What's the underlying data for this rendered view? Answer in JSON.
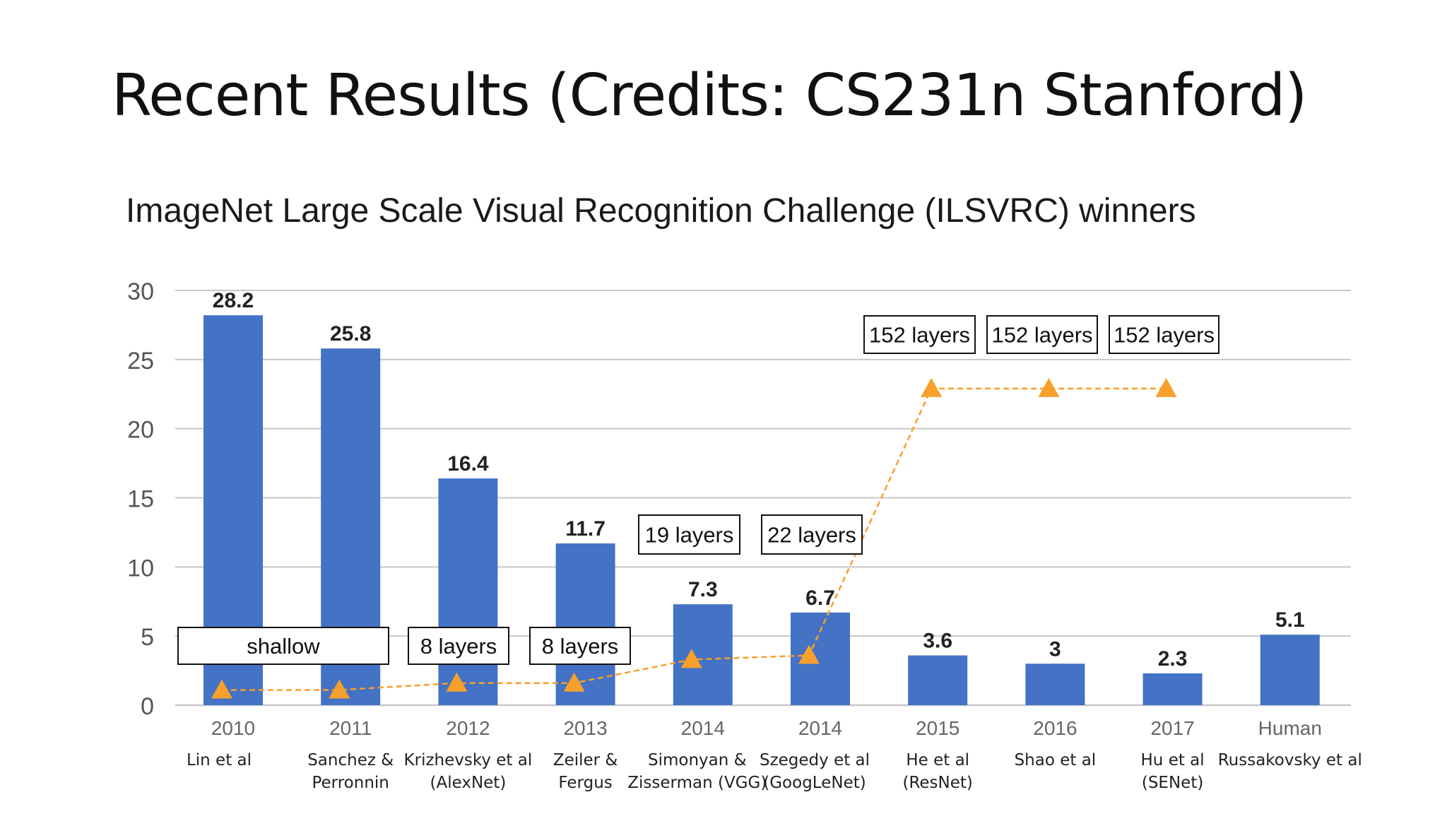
{
  "slide": {
    "title": "Recent Results (Credits: CS231n Stanford)"
  },
  "chart_data": {
    "type": "bar",
    "title": "ImageNet Large Scale Visual Recognition Challenge (ILSVRC) winners",
    "xlabel": "",
    "ylabel": "",
    "ylim": [
      0,
      30
    ],
    "yticks": [
      0,
      5,
      10,
      15,
      20,
      25,
      30
    ],
    "grid": true,
    "colors": {
      "bar": "#4472c4",
      "depth_line": "#f7a02b",
      "grid": "#c8c8c8"
    },
    "categories": [
      {
        "year": "2010",
        "authors": [
          "Lin et al"
        ]
      },
      {
        "year": "2011",
        "authors": [
          "Sanchez &",
          "Perronnin"
        ]
      },
      {
        "year": "2012",
        "authors": [
          "Krizhevsky et al",
          "(AlexNet)"
        ]
      },
      {
        "year": "2013",
        "authors": [
          "Zeiler &",
          "Fergus"
        ]
      },
      {
        "year": "2014",
        "authors": [
          "Simonyan &",
          "Zisserman (VGG)"
        ]
      },
      {
        "year": "2014",
        "authors": [
          "Szegedy et al",
          "(GoogLeNet)"
        ]
      },
      {
        "year": "2015",
        "authors": [
          "He et al",
          "(ResNet)"
        ]
      },
      {
        "year": "2016",
        "authors": [
          "Shao et al"
        ]
      },
      {
        "year": "2017",
        "authors": [
          "Hu et al",
          "(SENet)"
        ]
      },
      {
        "year": "Human",
        "authors": [
          "Russakovsky et al"
        ]
      }
    ],
    "values": [
      28.2,
      25.8,
      16.4,
      11.7,
      7.3,
      6.7,
      3.6,
      3,
      2.3,
      5.1
    ],
    "value_labels": [
      "28.2",
      "25.8",
      "16.4",
      "11.7",
      "7.3",
      "6.7",
      "3.6",
      "3",
      "2.3",
      "5.1"
    ],
    "depth_markers": [
      1.1,
      1.1,
      1.6,
      1.6,
      3.3,
      3.6,
      22.9,
      22.9,
      22.9
    ],
    "depth_labels": [
      {
        "text": "shallow",
        "categories": [
          0,
          1
        ]
      },
      {
        "text": "8 layers",
        "categories": [
          2
        ]
      },
      {
        "text": "8 layers",
        "categories": [
          3
        ]
      },
      {
        "text": "19 layers",
        "categories": [
          4
        ]
      },
      {
        "text": "22 layers",
        "categories": [
          5
        ]
      },
      {
        "text": "152 layers",
        "categories": [
          6
        ]
      },
      {
        "text": "152 layers",
        "categories": [
          7
        ]
      },
      {
        "text": "152 layers",
        "categories": [
          8
        ]
      }
    ]
  }
}
